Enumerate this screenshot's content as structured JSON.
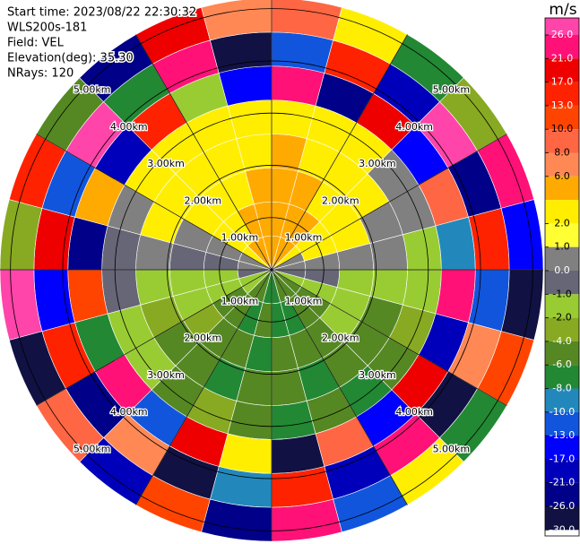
{
  "chart_data": {
    "type": "ppi",
    "info": [
      "Start time: 2023/08/22 22:30:32",
      "WLS200s-181",
      "Field: VEL",
      "Elevation(deg): 35.30",
      "NRays: 120"
    ],
    "azimuth_bins": [
      0,
      15,
      30,
      45,
      60,
      75,
      90,
      105,
      120,
      135,
      150,
      165,
      180,
      195,
      210,
      225,
      240,
      255,
      270,
      285,
      300,
      315,
      330,
      345,
      360
    ],
    "range_bins_km": [
      0,
      0.65,
      1.3,
      1.95,
      2.6,
      3.25,
      3.9,
      4.55,
      5.2
    ],
    "values": [
      [
        5,
        5,
        5,
        5,
        3,
        21,
        -13,
        8
      ],
      [
        5,
        5,
        5,
        3,
        3,
        -26,
        13,
        2
      ],
      [
        5,
        5,
        3,
        3,
        2.5,
        17,
        -21,
        -8
      ],
      [
        3,
        3,
        3,
        2.5,
        0.5,
        -17,
        26,
        -4
      ],
      [
        0.5,
        3,
        2.5,
        0.5,
        0.5,
        8,
        -26,
        21
      ],
      [
        0.5,
        0.5,
        0.5,
        0.5,
        -1.5,
        -10,
        15,
        -17
      ],
      [
        -0.5,
        -0.5,
        -1.5,
        -1.5,
        -1.5,
        23,
        -13,
        -28
      ],
      [
        -1.5,
        -1.5,
        -1.5,
        -5,
        -3,
        -21,
        7,
        12
      ],
      [
        -5,
        -5,
        -1.5,
        -5,
        -5,
        18,
        -28,
        -7
      ],
      [
        -5,
        -5,
        -5,
        -5,
        -7,
        -15,
        25,
        3
      ],
      [
        -5,
        -7,
        -5,
        -7,
        -5,
        9,
        -19,
        -11
      ],
      [
        -7,
        -7,
        -5,
        -5,
        -7,
        -28,
        14,
        22
      ],
      [
        -7,
        -5,
        -7,
        -5,
        -5,
        3,
        -9,
        -24
      ],
      [
        -5,
        -7,
        -5,
        -7,
        -3,
        19,
        -27,
        11
      ],
      [
        -5,
        -5,
        -5,
        -5,
        -5,
        -12,
        6,
        -18
      ],
      [
        -1.5,
        -5,
        -3,
        -5,
        -1.5,
        24,
        -22,
        9
      ],
      [
        -1.5,
        -1.5,
        -1.5,
        -3,
        -1.5,
        -7,
        16,
        -29
      ],
      [
        -0.5,
        -1.5,
        -1.5,
        -1.5,
        -0.5,
        11,
        -14,
        27
      ],
      [
        0.5,
        -0.5,
        -0.5,
        0.5,
        -0.5,
        -23,
        20,
        -3
      ],
      [
        0.5,
        0.5,
        0.5,
        3,
        0.5,
        5,
        -11,
        15
      ],
      [
        3,
        3,
        3,
        3,
        3,
        -19,
        28,
        -6
      ],
      [
        5,
        3,
        3,
        3,
        3,
        14,
        -8,
        -25
      ],
      [
        5,
        5,
        3,
        3,
        3,
        -2,
        22,
        18
      ],
      [
        5,
        5,
        5,
        3,
        3,
        -16,
        -28,
        7
      ]
    ],
    "rings": [
      {
        "value": 1,
        "label": "1.00km"
      },
      {
        "value": 2,
        "label": "2.00km"
      },
      {
        "value": 3,
        "label": "3.00km"
      },
      {
        "value": 4,
        "label": "4.00km"
      },
      {
        "value": 5,
        "label": "5.00km"
      }
    ],
    "azimuth_ticks": [
      0,
      30,
      60,
      90,
      120,
      150,
      180,
      210,
      240,
      270,
      300,
      330
    ],
    "colorbar": {
      "title": "m/s",
      "levels": [
        30,
        26,
        21,
        17,
        13,
        10,
        8,
        6,
        4,
        2,
        1,
        0,
        -1,
        -2,
        -4,
        -6,
        -8,
        -10,
        -13,
        -17,
        -21,
        -26,
        -30
      ],
      "colors": [
        "#ff44aa",
        "#ff1177",
        "#ee0000",
        "#ff2200",
        "#ff4400",
        "#ff6644",
        "#ff8855",
        "#ffaa00",
        "#ffee00",
        "#ffff33",
        "#808080",
        "#666677",
        "#99cc33",
        "#88aa22",
        "#558822",
        "#228833",
        "#2288bb",
        "#1155dd",
        "#0000ff",
        "#0000bb",
        "#000088",
        "#111144"
      ],
      "ticks": [
        {
          "value": 26,
          "label": "26.0"
        },
        {
          "value": 21,
          "label": "21.0"
        },
        {
          "value": 17,
          "label": "17.0"
        },
        {
          "value": 13,
          "label": "13.0"
        },
        {
          "value": 10,
          "label": "10.0"
        },
        {
          "value": 8,
          "label": "8.0"
        },
        {
          "value": 6,
          "label": "6.0"
        },
        {
          "value": 2,
          "label": "2.0"
        },
        {
          "value": 1,
          "label": "1.0"
        },
        {
          "value": 0,
          "label": "0.0"
        },
        {
          "value": -1,
          "label": "-1.0"
        },
        {
          "value": -2,
          "label": "-2.0"
        },
        {
          "value": -4,
          "label": "-4.0"
        },
        {
          "value": -6,
          "label": "-6.0"
        },
        {
          "value": -8,
          "label": "-8.0"
        },
        {
          "value": -10,
          "label": "-10.0"
        },
        {
          "value": -13,
          "label": "-13.0"
        },
        {
          "value": -17,
          "label": "-17.0"
        },
        {
          "value": -21,
          "label": "-21.0"
        },
        {
          "value": -26,
          "label": "-26.0"
        },
        {
          "value": -30,
          "label": "-30.0"
        }
      ]
    }
  }
}
